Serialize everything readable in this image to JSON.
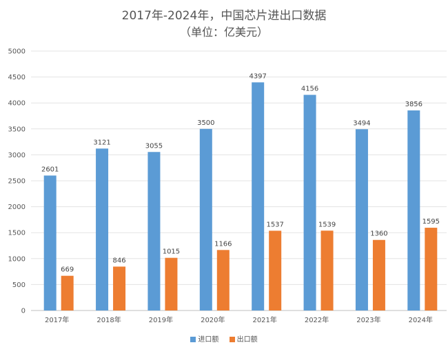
{
  "chart_data": {
    "type": "bar",
    "title": "2017年-2024年，中国芯片进出口数据",
    "subtitle": "（单位：亿美元）",
    "categories": [
      "2017年",
      "2018年",
      "2019年",
      "2020年",
      "2021年",
      "2022年",
      "2023年",
      "2024年"
    ],
    "series": [
      {
        "name": "进口额",
        "color": "#5b9bd5",
        "values": [
          2601,
          3121,
          3055,
          3500,
          4397,
          4156,
          3494,
          3856
        ]
      },
      {
        "name": "出口额",
        "color": "#ed7d31",
        "values": [
          669,
          846,
          1015,
          1166,
          1537,
          1539,
          1360,
          1595
        ]
      }
    ],
    "ylim": [
      0,
      5000
    ],
    "yticks": [
      0,
      500,
      1000,
      1500,
      2000,
      2500,
      3000,
      3500,
      4000,
      4500,
      5000
    ],
    "grid": true,
    "legend_position": "bottom"
  }
}
